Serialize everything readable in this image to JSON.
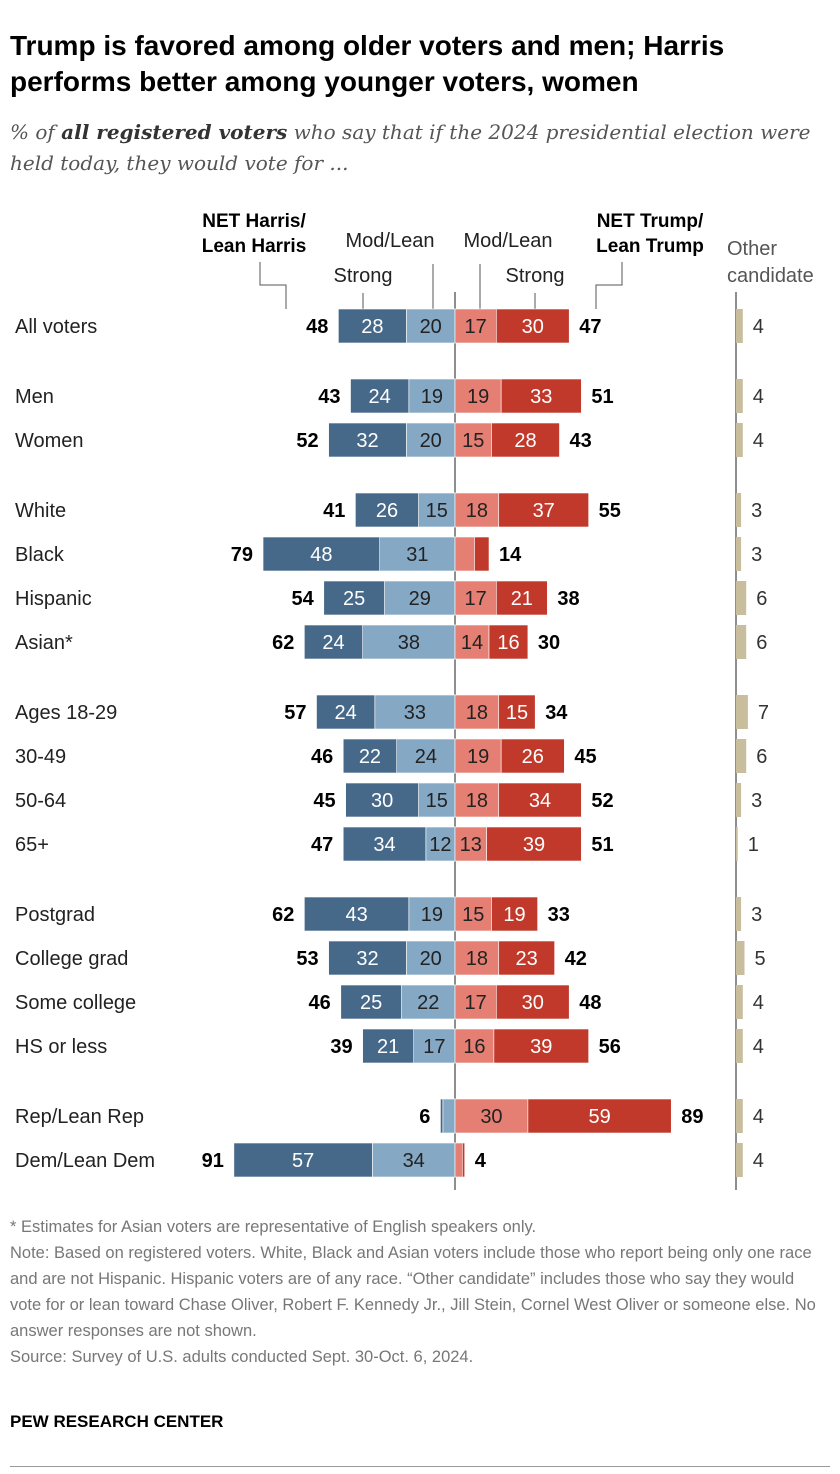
{
  "title": "Trump is favored among older voters and men; Harris performs better among younger voters, women",
  "subtitle": {
    "prefix": "% of ",
    "bold": "all registered voters",
    "suffix": " who say that if the 2024 presidential election were held today, they would vote for ..."
  },
  "colors": {
    "harris_strong": "#46698a",
    "harris_mod": "#85a8c4",
    "trump_mod": "#e57f73",
    "trump_strong": "#c0392b",
    "other": "#c8bd9c"
  },
  "chart_data": {
    "type": "bar",
    "headers": {
      "net_harris": [
        "NET Harris/",
        "Lean Harris"
      ],
      "harris_mod": "Mod/Lean",
      "harris_strong": "Strong",
      "trump_mod": "Mod/Lean",
      "trump_strong": "Strong",
      "net_trump": [
        "NET Trump/",
        "Lean Trump"
      ],
      "other": [
        "Other",
        "candidate"
      ]
    },
    "groups": [
      [
        {
          "label": "All voters",
          "hs": 28,
          "hm": 20,
          "hn": 48,
          "tm": 17,
          "ts": 30,
          "tn": 47,
          "o": 4
        }
      ],
      [
        {
          "label": "Men",
          "hs": 24,
          "hm": 19,
          "hn": 43,
          "tm": 19,
          "ts": 33,
          "tn": 51,
          "o": 4
        },
        {
          "label": "Women",
          "hs": 32,
          "hm": 20,
          "hn": 52,
          "tm": 15,
          "ts": 28,
          "tn": 43,
          "o": 4
        }
      ],
      [
        {
          "label": "White",
          "hs": 26,
          "hm": 15,
          "hn": 41,
          "tm": 18,
          "ts": 37,
          "tn": 55,
          "o": 3
        },
        {
          "label": "Black",
          "hs": 48,
          "hm": 31,
          "hn": 79,
          "tm": 8,
          "ts": 6,
          "tn": 14,
          "o": 3
        },
        {
          "label": "Hispanic",
          "hs": 25,
          "hm": 29,
          "hn": 54,
          "tm": 17,
          "ts": 21,
          "tn": 38,
          "o": 6
        },
        {
          "label": "Asian*",
          "hs": 24,
          "hm": 38,
          "hn": 62,
          "tm": 14,
          "ts": 16,
          "tn": 30,
          "o": 6
        }
      ],
      [
        {
          "label": "Ages 18-29",
          "hs": 24,
          "hm": 33,
          "hn": 57,
          "tm": 18,
          "ts": 15,
          "tn": 34,
          "o": 7
        },
        {
          "label": "30-49",
          "hs": 22,
          "hm": 24,
          "hn": 46,
          "tm": 19,
          "ts": 26,
          "tn": 45,
          "o": 6
        },
        {
          "label": "50-64",
          "hs": 30,
          "hm": 15,
          "hn": 45,
          "tm": 18,
          "ts": 34,
          "tn": 52,
          "o": 3
        },
        {
          "label": "65+",
          "hs": 34,
          "hm": 12,
          "hn": 47,
          "tm": 13,
          "ts": 39,
          "tn": 51,
          "o": 1
        }
      ],
      [
        {
          "label": "Postgrad",
          "hs": 43,
          "hm": 19,
          "hn": 62,
          "tm": 15,
          "ts": 19,
          "tn": 33,
          "o": 3
        },
        {
          "label": "College grad",
          "hs": 32,
          "hm": 20,
          "hn": 53,
          "tm": 18,
          "ts": 23,
          "tn": 42,
          "o": 5
        },
        {
          "label": "Some college",
          "hs": 25,
          "hm": 22,
          "hn": 46,
          "tm": 17,
          "ts": 30,
          "tn": 48,
          "o": 4
        },
        {
          "label": "HS or less",
          "hs": 21,
          "hm": 17,
          "hn": 39,
          "tm": 16,
          "ts": 39,
          "tn": 56,
          "o": 4
        }
      ],
      [
        {
          "label": "Rep/Lean Rep",
          "hs": 1,
          "hm": 5,
          "hn": 6,
          "tm": 30,
          "ts": 59,
          "tn": 89,
          "o": 4
        },
        {
          "label": "Dem/Lean Dem",
          "hs": 57,
          "hm": 34,
          "hn": 91,
          "tm": 3,
          "ts": 1,
          "tn": 4,
          "o": 4
        }
      ]
    ]
  },
  "footer": {
    "asterisk": "* Estimates for Asian voters are representative of English speakers only.",
    "note": "Note: Based on registered voters. White, Black and Asian voters include those who report being only one race and are not Hispanic. Hispanic voters are of any race. “Other candidate” includes those who say they would vote for or lean toward Chase Oliver, Robert F. Kennedy Jr., Jill Stein, Cornel West Oliver or someone else. No answer responses are not shown.",
    "source": "Source: Survey of U.S. adults conducted Sept. 30-Oct. 6, 2024.",
    "brand": "PEW RESEARCH CENTER"
  }
}
